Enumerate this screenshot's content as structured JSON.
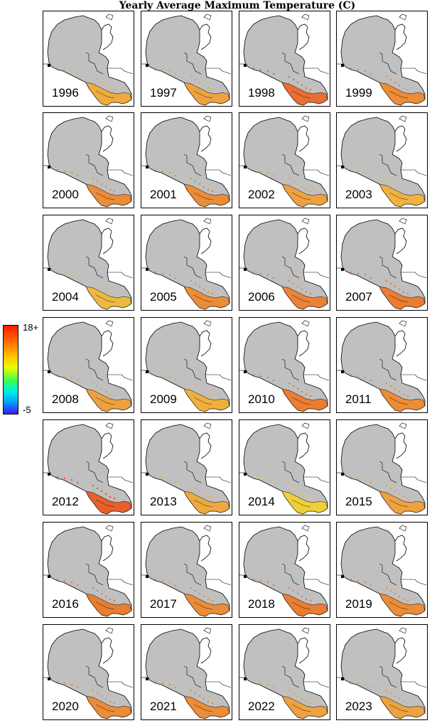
{
  "title": "Yearly Average Maximum Temperature (C)",
  "legend": {
    "max_label": "18+",
    "min_label": "-5"
  },
  "colors": {
    "land": "#c0c0c0",
    "outline": "#000000"
  },
  "panels": [
    {
      "year": "1996",
      "south": "#f2a93a"
    },
    {
      "year": "1997",
      "south": "#f0a03a"
    },
    {
      "year": "1998",
      "south": "#ec6a2a"
    },
    {
      "year": "1999",
      "south": "#ee8a30"
    },
    {
      "year": "2000",
      "south": "#ee8a30"
    },
    {
      "year": "2001",
      "south": "#ee8a30"
    },
    {
      "year": "2002",
      "south": "#f0a03a"
    },
    {
      "year": "2003",
      "south": "#f2b23a"
    },
    {
      "year": "2004",
      "south": "#f2b83a"
    },
    {
      "year": "2005",
      "south": "#ee8a30"
    },
    {
      "year": "2006",
      "south": "#ee8030"
    },
    {
      "year": "2007",
      "south": "#ec7a2c"
    },
    {
      "year": "2008",
      "south": "#f0a03a"
    },
    {
      "year": "2009",
      "south": "#f2b03a"
    },
    {
      "year": "2010",
      "south": "#ec7a2c"
    },
    {
      "year": "2011",
      "south": "#ee8a30"
    },
    {
      "year": "2012",
      "south": "#ea5a26"
    },
    {
      "year": "2013",
      "south": "#f0a83a"
    },
    {
      "year": "2014",
      "south": "#f2d030"
    },
    {
      "year": "2015",
      "south": "#f0a03a"
    },
    {
      "year": "2016",
      "south": "#ec7a2c"
    },
    {
      "year": "2017",
      "south": "#ee8a30"
    },
    {
      "year": "2018",
      "south": "#ec7a2c"
    },
    {
      "year": "2019",
      "south": "#ee8a30"
    },
    {
      "year": "2020",
      "south": "#ee8a30"
    },
    {
      "year": "2021",
      "south": "#ee8a30"
    },
    {
      "year": "2022",
      "south": "#f0a03a"
    },
    {
      "year": "2023",
      "south": "#f0a03a"
    }
  ]
}
